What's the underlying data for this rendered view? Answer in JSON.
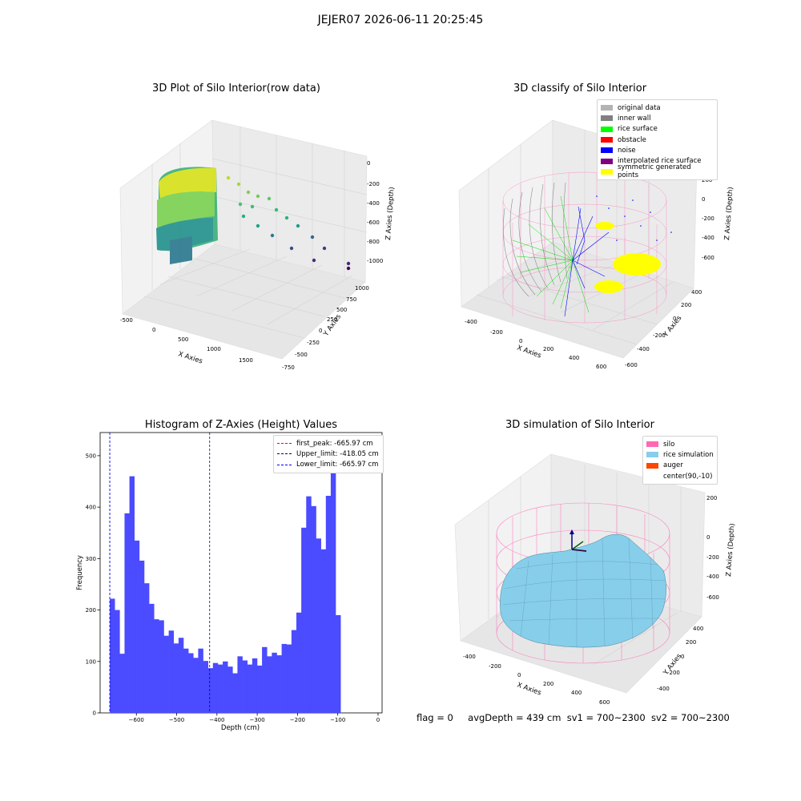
{
  "figure": {
    "suptitle": "JEJER07 2026-06-11 20:25:45",
    "status": {
      "flag": "flag = 0",
      "avg_depth": "avgDepth = 439 cm",
      "sv1": "sv1 = 700~2300",
      "sv2": "sv2 = 700~2300"
    }
  },
  "panels": {
    "raw": {
      "title": "3D Plot of Silo Interior(row data)",
      "xlabel": "X Axies",
      "ylabel": "Y Axies",
      "zlabel": "Z Axies (Depth)",
      "x_ticks": [
        "-500",
        "0",
        "500",
        "1000",
        "1500"
      ],
      "y_ticks": [
        "-750",
        "-500",
        "-250",
        "0",
        "250",
        "500",
        "750",
        "1000"
      ],
      "z_ticks": [
        "0",
        "-200",
        "-400",
        "-600",
        "-800",
        "-1000"
      ]
    },
    "classify": {
      "title": "3D classify of Silo Interior",
      "xlabel": "X Axies",
      "ylabel": "Y Axies",
      "zlabel": "Z Axies (Depth)",
      "x_ticks": [
        "-400",
        "-200",
        "0",
        "200",
        "400",
        "600"
      ],
      "y_ticks": [
        "-600",
        "-400",
        "-200",
        "0",
        "200",
        "400"
      ],
      "z_ticks": [
        "200",
        "0",
        "-200",
        "-400",
        "-600"
      ],
      "z_top_partial": "00",
      "legend": [
        {
          "label": "original data",
          "color": "#b3b3b3"
        },
        {
          "label": "inner wall",
          "color": "#808080"
        },
        {
          "label": "rice surface",
          "color": "#00ff00"
        },
        {
          "label": "obstacle",
          "color": "#ff0000"
        },
        {
          "label": "noise",
          "color": "#0000ff"
        },
        {
          "label": "interpolated rice surface",
          "color": "#800080"
        },
        {
          "label": "symmetric generated points",
          "color": "#ffff00"
        }
      ]
    },
    "simulation": {
      "title": "3D simulation of Silo Interior",
      "xlabel": "X Axies",
      "ylabel": "Y Axies",
      "zlabel": "Z Axies (Depth)",
      "x_ticks": [
        "-400",
        "-200",
        "0",
        "200",
        "400",
        "600"
      ],
      "y_ticks": [
        "-400",
        "-200",
        "0",
        "200",
        "400"
      ],
      "z_ticks": [
        "200",
        "0",
        "-200",
        "-400",
        "-600"
      ],
      "legend": [
        {
          "label": "silo",
          "color": "#ff69b4"
        },
        {
          "label": "rice simulation",
          "color": "#87ceeb"
        },
        {
          "label": "auger",
          "color": "#ff4500"
        },
        {
          "label": "center(90,-10)",
          "color": ""
        }
      ]
    }
  },
  "chart_data": {
    "type": "bar",
    "title": "Histogram of Z-Axies (Height) Values",
    "xlabel": "Depth (cm)",
    "ylabel": "Frequency",
    "xlim": [
      -690,
      10
    ],
    "ylim": [
      0,
      545
    ],
    "x_ticks": [
      -600,
      -500,
      -400,
      -300,
      -200,
      -100,
      0
    ],
    "y_ticks": [
      0,
      100,
      200,
      300,
      400,
      500
    ],
    "bar_color": "#4b4bff",
    "bin_start": -666,
    "bin_width": 12.19,
    "values": [
      222,
      200,
      115,
      388,
      460,
      335,
      296,
      252,
      212,
      182,
      180,
      150,
      160,
      135,
      146,
      125,
      116,
      107,
      125,
      101,
      87,
      97,
      94,
      100,
      90,
      77,
      110,
      102,
      94,
      106,
      92,
      128,
      110,
      117,
      112,
      134,
      133,
      161,
      195,
      360,
      421,
      402,
      339,
      318,
      422,
      518,
      190
    ],
    "lines": [
      {
        "label": "first_peak: -665.97 cm",
        "x": -665.97,
        "color": "#ff0000"
      },
      {
        "label": "Upper_limit: -418.05 cm",
        "x": -418.05,
        "color": "#00008b"
      },
      {
        "label": "Lower_limit: -665.97 cm",
        "x": -665.97,
        "color": "#0000ff"
      }
    ]
  }
}
